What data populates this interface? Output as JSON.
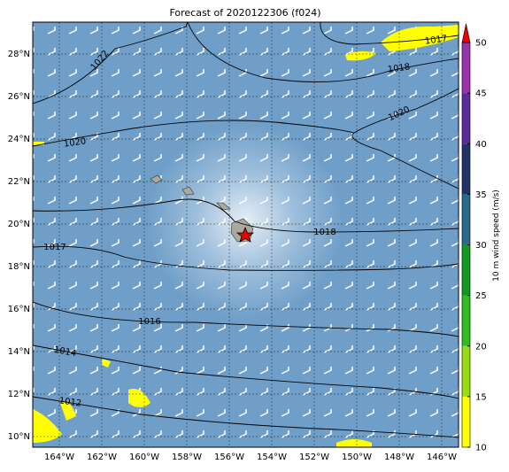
{
  "title": "Forecast of 2020122306 (f024)",
  "map": {
    "lat_labels": [
      "28°N",
      "26°N",
      "24°N",
      "22°N",
      "20°N",
      "18°N",
      "16°N",
      "14°N",
      "12°N",
      "10°N"
    ],
    "lon_labels": [
      "164°W",
      "162°W",
      "160°W",
      "158°W",
      "156°W",
      "154°W",
      "152°W",
      "150°W",
      "148°W",
      "146°W"
    ],
    "contour_labels": [
      "1022",
      "1017",
      "1018",
      "1020",
      "1020",
      "1018",
      "1017",
      "1016",
      "1014",
      "1012"
    ]
  },
  "colorbar": {
    "label": "10 m wind speed (m/s)",
    "range": [
      10,
      50
    ],
    "ticks": [
      10,
      15,
      20,
      25,
      30,
      35,
      40,
      45,
      50
    ],
    "colors": [
      "#ffff00",
      "#99dd11",
      "#33bb22",
      "#119922",
      "#2a6a8a",
      "#223366",
      "#5a2c9a",
      "#9933aa"
    ],
    "extend_color": "#ee0000"
  }
}
